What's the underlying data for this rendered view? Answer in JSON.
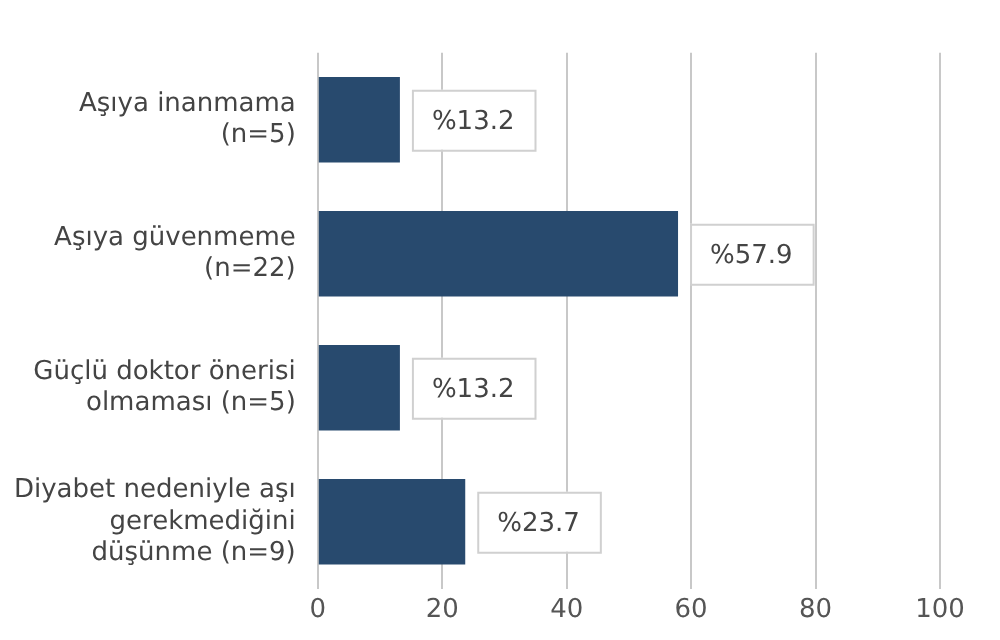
{
  "chart_data": {
    "type": "bar",
    "orientation": "horizontal",
    "categories": [
      "Aşıya inanmama\n(n=5)",
      "Aşıya güvenmeme\n(n=22)",
      "Güçlü doktor önerisi\nolmaması (n=5)",
      "Diyabet nedeniyle aşı\ngerekmediğini\ndüşünme (n=9)"
    ],
    "values": [
      13.2,
      57.9,
      13.2,
      23.7
    ],
    "value_labels": [
      "%13.2",
      "%57.9",
      "%13.2",
      "%23.7"
    ],
    "color": "#284a6e",
    "xlim": [
      0,
      100
    ],
    "xticks": [
      0,
      20,
      40,
      60,
      80,
      100
    ],
    "grid": "x",
    "legend": false
  }
}
